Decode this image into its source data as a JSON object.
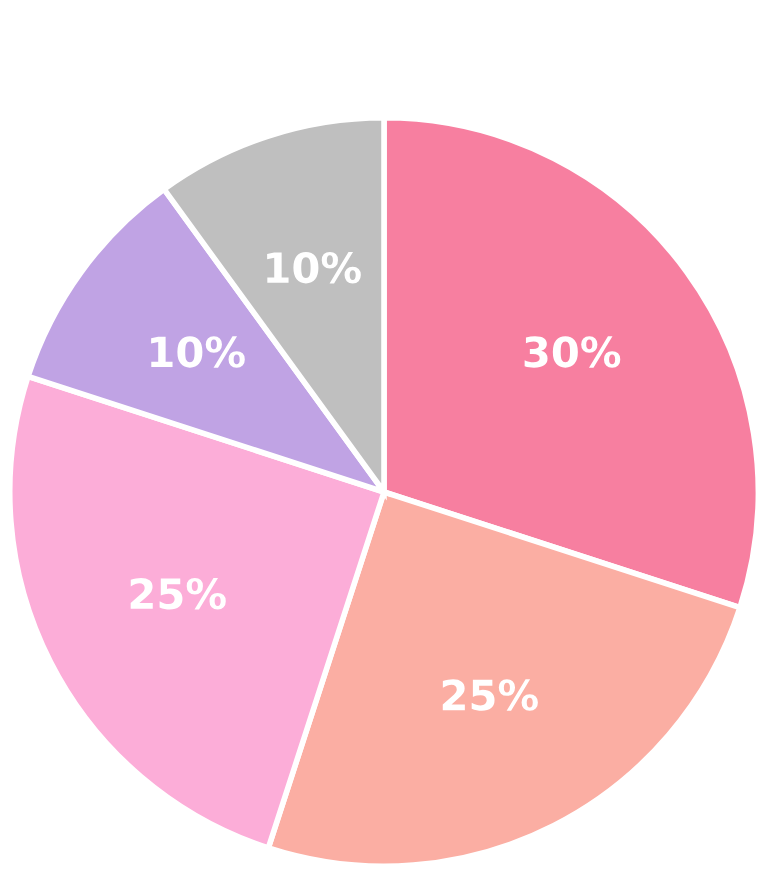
{
  "chart_data": {
    "type": "pie",
    "categories": [
      null,
      null,
      null,
      null,
      null
    ],
    "values": [
      30,
      25,
      25,
      10,
      10
    ],
    "colors": [
      "#f77fa0",
      "#fbaea3",
      "#fcadd8",
      "#c0a3e4",
      "#bfbfbf"
    ],
    "value_labels": [
      "30%",
      "25%",
      "25%",
      "10%",
      "10%"
    ]
  }
}
